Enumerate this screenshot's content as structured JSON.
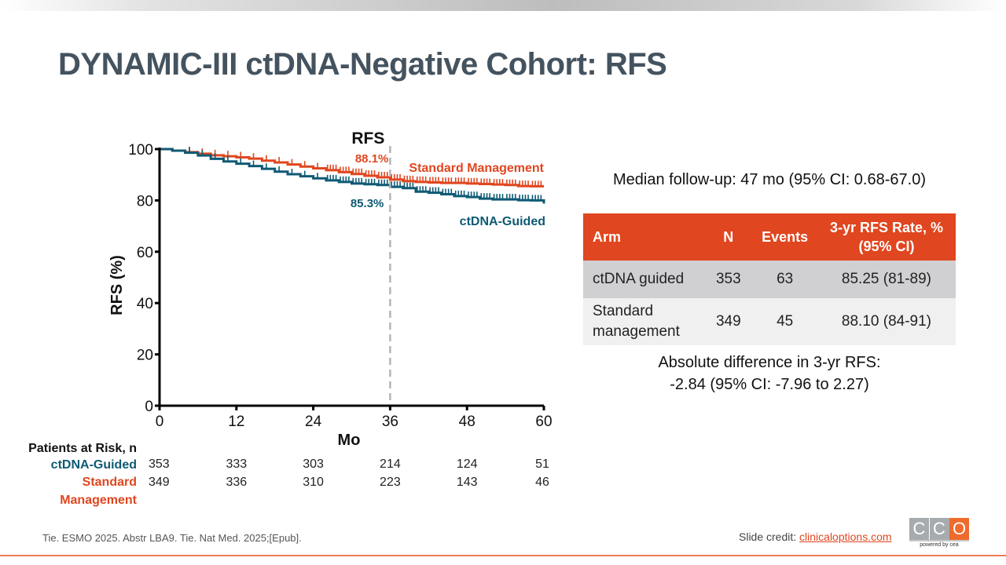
{
  "slide": {
    "title": "DYNAMIC-III ctDNA-Negative Cohort: RFS",
    "citation": "Tie. ESMO 2025. Abstr LBA9. Tie. Nat Med. 2025;[Epub].",
    "credit_prefix": "Slide credit: ",
    "credit_link": "clinicaloptions.com",
    "logo": {
      "letters": [
        "C",
        "C",
        "O"
      ],
      "tagline": "powered by cea"
    }
  },
  "colors": {
    "standard": "#e0461f",
    "ctdna": "#0f5a74",
    "title": "#44535f",
    "table_header": "#e0461f"
  },
  "chart_data": {
    "type": "line",
    "subtype": "kaplan-meier",
    "title": "RFS",
    "xlabel": "Mo",
    "ylabel": "RFS (%)",
    "xlim": [
      0,
      60
    ],
    "ylim": [
      0,
      100
    ],
    "xticks": [
      0,
      12,
      24,
      36,
      48,
      60
    ],
    "yticks": [
      0,
      20,
      40,
      60,
      80,
      100
    ],
    "grid": false,
    "reference_line": {
      "x": 36,
      "style": "dashed"
    },
    "series": [
      {
        "name": "Standard Management",
        "color": "#e0461f",
        "annotation": "88.1%",
        "x": [
          0,
          2,
          4,
          6,
          8,
          10,
          12,
          14,
          16,
          18,
          20,
          22,
          24,
          26,
          28,
          30,
          32,
          34,
          36,
          38,
          40,
          42,
          44,
          46,
          48,
          50,
          52,
          54,
          56,
          58,
          60
        ],
        "y": [
          100,
          99.4,
          98.8,
          98.2,
          97.6,
          97.2,
          96.8,
          96.3,
          95.5,
          94.8,
          94.0,
          93.2,
          92.5,
          91.8,
          91.0,
          90.3,
          89.6,
          89.0,
          88.1,
          87.5,
          87.2,
          87.0,
          86.8,
          86.8,
          86.6,
          86.4,
          86.2,
          86.0,
          85.6,
          85.5,
          85.5
        ]
      },
      {
        "name": "ctDNA-Guided",
        "color": "#0f5a74",
        "annotation": "85.3%",
        "x": [
          0,
          2,
          4,
          6,
          8,
          10,
          12,
          14,
          16,
          18,
          20,
          22,
          24,
          26,
          28,
          30,
          32,
          34,
          36,
          38,
          40,
          42,
          44,
          46,
          48,
          50,
          52,
          54,
          56,
          58,
          60
        ],
        "y": [
          100,
          99.4,
          98.6,
          97.5,
          96.2,
          95.2,
          94.3,
          93.4,
          92.3,
          91.2,
          90.2,
          89.4,
          88.6,
          87.8,
          87.2,
          86.6,
          86.3,
          86.0,
          85.3,
          84.8,
          83.4,
          83.0,
          82.4,
          81.7,
          81.3,
          80.7,
          80.4,
          80.4,
          80.1,
          80.0,
          78.8
        ]
      }
    ],
    "risk_table": {
      "title": "Patients at Risk, n",
      "timepoints": [
        0,
        12,
        24,
        36,
        48,
        60
      ],
      "rows": [
        {
          "label": "ctDNA-Guided",
          "label_lines": [
            "ctDNA-Guided"
          ],
          "color": "#0f5a74",
          "values": [
            353,
            333,
            303,
            214,
            124,
            51
          ]
        },
        {
          "label": "Standard Management",
          "label_lines": [
            "Standard",
            "Management"
          ],
          "color": "#e0461f",
          "values": [
            349,
            336,
            310,
            223,
            143,
            46
          ]
        }
      ]
    }
  },
  "summary": {
    "median_followup": "Median follow-up: 47 mo (95% CI: 0.68-67.0)",
    "table": {
      "headers": [
        "Arm",
        "N",
        "Events",
        "3-yr RFS Rate, % (95% CI)"
      ],
      "header_lines": [
        "3-yr RFS Rate, %",
        "(95% CI)"
      ],
      "rows": [
        {
          "arm": "ctDNA guided",
          "n": "353",
          "events": "63",
          "rate": "85.25 (81-89)"
        },
        {
          "arm": "Standard management",
          "arm_lines": [
            "Standard",
            "management"
          ],
          "n": "349",
          "events": "45",
          "rate": "88.10 (84-91)"
        }
      ]
    },
    "abs_diff_line1": "Absolute difference in 3-yr RFS:",
    "abs_diff_line2": "-2.84 (95% CI: -7.96 to 2.27)"
  }
}
